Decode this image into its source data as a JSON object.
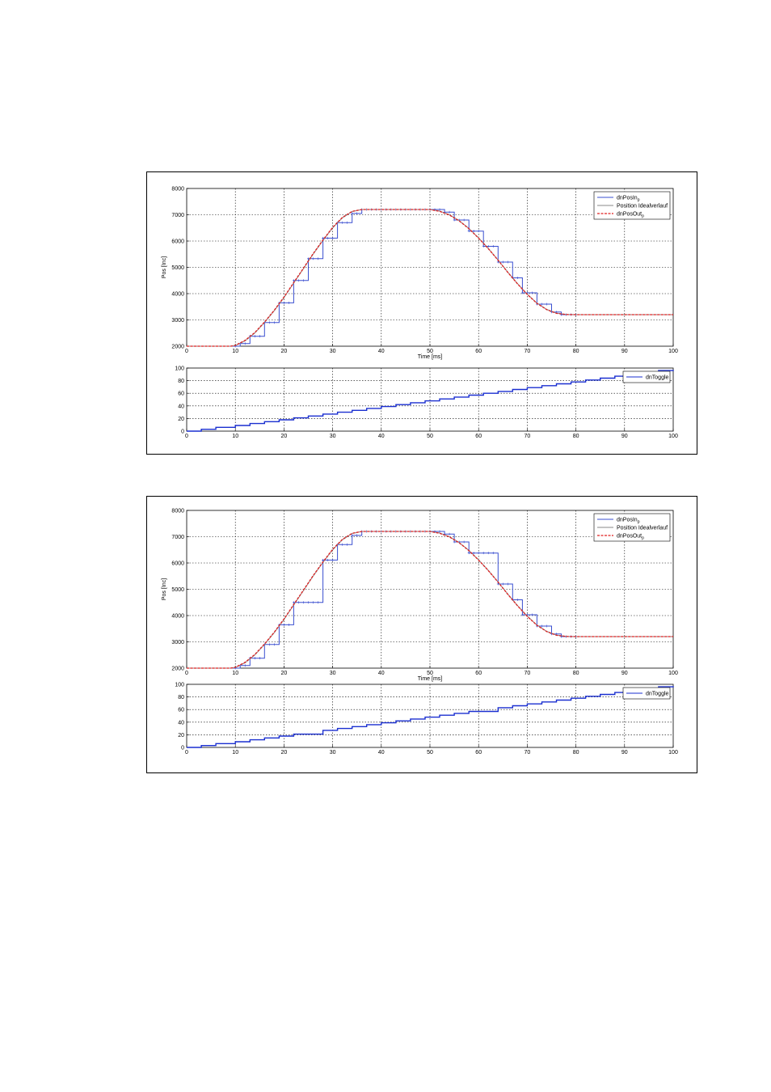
{
  "chart_data": [
    {
      "type": "line",
      "panel": "position",
      "xlabel": "Time [ms]",
      "ylabel": "Pos [Inc]",
      "xlim": [
        0,
        100
      ],
      "ylim": [
        2000,
        8000
      ],
      "xticks": [
        "0",
        "10",
        "20",
        "30",
        "40",
        "50",
        "60",
        "70",
        "80",
        "90",
        "100"
      ],
      "yticks": [
        "2000",
        "3000",
        "4000",
        "5000",
        "6000",
        "7000",
        "8000"
      ],
      "grid": true,
      "legend_position": "top-right",
      "series": [
        {
          "name": "dnPosIn",
          "name_sub": "p",
          "style": "step-markers",
          "color": "#3a4fd0",
          "x": [
            0,
            10,
            11,
            12,
            13,
            14,
            15,
            16,
            17,
            18,
            19,
            20,
            21,
            22,
            23,
            24,
            25,
            26,
            27,
            28,
            29,
            30,
            31,
            32,
            33,
            34,
            35,
            36,
            37,
            38,
            39,
            40,
            41,
            42,
            43,
            44,
            45,
            46,
            47,
            48,
            49,
            50,
            51,
            52,
            53,
            54,
            55,
            56,
            57,
            58,
            59,
            60,
            61,
            62,
            63,
            64,
            65,
            66,
            67,
            68,
            69,
            70,
            71,
            72,
            73,
            74,
            75,
            76,
            77,
            78,
            79,
            80,
            100
          ],
          "y": [
            2000,
            2000,
            2100,
            2100,
            2380,
            2380,
            2380,
            2900,
            2900,
            2900,
            3650,
            3650,
            3650,
            4500,
            4500,
            4500,
            5330,
            5330,
            5330,
            6110,
            6110,
            6110,
            6700,
            6700,
            6700,
            7050,
            7050,
            7200,
            7200,
            7200,
            7200,
            7200,
            7200,
            7200,
            7200,
            7200,
            7200,
            7200,
            7200,
            7200,
            7200,
            7200,
            7200,
            7200,
            7100,
            7100,
            6800,
            6800,
            6800,
            6380,
            6380,
            6380,
            5800,
            5800,
            5800,
            5200,
            5200,
            5200,
            4600,
            4600,
            4030,
            4030,
            4030,
            3600,
            3600,
            3600,
            3300,
            3300,
            3200,
            3200,
            3200,
            3200,
            3200
          ]
        },
        {
          "name": "Position Idealverlauf",
          "style": "line",
          "color": "#8a8a8a",
          "x": [
            0,
            9,
            10,
            12,
            14,
            16,
            18,
            20,
            22,
            24,
            26,
            28,
            30,
            32,
            34,
            36,
            38,
            50,
            52,
            54,
            56,
            58,
            60,
            62,
            64,
            66,
            68,
            70,
            72,
            74,
            76,
            78,
            80,
            100
          ],
          "y": [
            2000,
            2000,
            2020,
            2200,
            2500,
            2900,
            3350,
            3850,
            4400,
            4950,
            5500,
            6020,
            6500,
            6880,
            7120,
            7200,
            7200,
            7200,
            7140,
            7000,
            6780,
            6480,
            6120,
            5720,
            5280,
            4820,
            4380,
            3980,
            3640,
            3400,
            3260,
            3210,
            3200,
            3200
          ]
        },
        {
          "name": "dnPosOut",
          "name_sub": "p",
          "style": "dashed",
          "color": "#e02020",
          "x": [
            0,
            9,
            10,
            12,
            14,
            16,
            18,
            20,
            22,
            24,
            26,
            28,
            30,
            32,
            34,
            36,
            38,
            50,
            52,
            54,
            56,
            58,
            60,
            62,
            64,
            66,
            68,
            70,
            72,
            74,
            76,
            78,
            80,
            100
          ],
          "y": [
            2000,
            2000,
            2030,
            2220,
            2520,
            2920,
            3370,
            3870,
            4420,
            4970,
            5520,
            6040,
            6520,
            6900,
            7130,
            7200,
            7200,
            7200,
            7130,
            6990,
            6770,
            6470,
            6110,
            5710,
            5270,
            4810,
            4370,
            3970,
            3630,
            3390,
            3250,
            3205,
            3200,
            3200
          ]
        }
      ]
    },
    {
      "type": "line",
      "panel": "toggle",
      "xlim": [
        0,
        100
      ],
      "ylim": [
        0,
        100
      ],
      "xticks": [
        "0",
        "10",
        "20",
        "30",
        "40",
        "50",
        "60",
        "70",
        "80",
        "90",
        "100"
      ],
      "yticks": [
        "0",
        "20",
        "40",
        "60",
        "80",
        "100"
      ],
      "grid": true,
      "legend_position": "top-right",
      "series": [
        {
          "name": "dnToggle",
          "style": "step",
          "color": "#1a2fd0",
          "x": [
            0,
            3,
            6,
            10,
            13,
            16,
            19,
            22,
            25,
            28,
            31,
            34,
            37,
            40,
            43,
            46,
            49,
            52,
            55,
            58,
            61,
            64,
            67,
            70,
            73,
            76,
            79,
            82,
            85,
            88,
            91,
            94,
            97,
            100
          ],
          "y": [
            0,
            3,
            6,
            9,
            12,
            15,
            18,
            21,
            24,
            27,
            30,
            33,
            36,
            39,
            42,
            45,
            48,
            51,
            54,
            57,
            60,
            63,
            66,
            69,
            72,
            75,
            78,
            81,
            84,
            87,
            90,
            93,
            96,
            97
          ]
        }
      ]
    },
    {
      "type": "line",
      "panel": "position",
      "xlabel": "Time [ms]",
      "ylabel": "Pos [Inc]",
      "xlim": [
        0,
        100
      ],
      "ylim": [
        2000,
        8000
      ],
      "xticks": [
        "0",
        "10",
        "20",
        "30",
        "40",
        "50",
        "60",
        "70",
        "80",
        "90",
        "100"
      ],
      "yticks": [
        "2000",
        "3000",
        "4000",
        "5000",
        "6000",
        "7000",
        "8000"
      ],
      "grid": true,
      "legend_position": "top-right",
      "series": [
        {
          "name": "dnPosIn",
          "name_sub": "p",
          "style": "step-markers",
          "color": "#3a4fd0",
          "x": [
            0,
            10,
            11,
            12,
            13,
            14,
            15,
            16,
            17,
            18,
            19,
            20,
            21,
            22,
            23,
            24,
            25,
            26,
            27,
            28,
            29,
            30,
            31,
            32,
            33,
            34,
            35,
            36,
            37,
            38,
            39,
            40,
            41,
            42,
            43,
            44,
            45,
            46,
            47,
            48,
            49,
            50,
            51,
            52,
            53,
            54,
            55,
            56,
            57,
            58,
            59,
            60,
            61,
            62,
            63,
            64,
            65,
            66,
            67,
            68,
            69,
            70,
            71,
            72,
            73,
            74,
            75,
            76,
            77,
            78,
            79,
            80,
            100
          ],
          "y": [
            2000,
            2000,
            2100,
            2100,
            2380,
            2380,
            2380,
            2900,
            2900,
            2900,
            3650,
            3650,
            3650,
            4500,
            4500,
            4500,
            4500,
            4500,
            4500,
            6110,
            6110,
            6110,
            6700,
            6700,
            6700,
            7050,
            7050,
            7200,
            7200,
            7200,
            7200,
            7200,
            7200,
            7200,
            7200,
            7200,
            7200,
            7200,
            7200,
            7200,
            7200,
            7200,
            7200,
            7200,
            7100,
            7100,
            6800,
            6800,
            6800,
            6380,
            6380,
            6380,
            6380,
            6380,
            6380,
            5200,
            5200,
            5200,
            4600,
            4600,
            4030,
            4030,
            4030,
            3600,
            3600,
            3600,
            3300,
            3300,
            3200,
            3200,
            3200,
            3200,
            3200
          ]
        },
        {
          "name": "Position Idealverlauf",
          "style": "line",
          "color": "#8a8a8a",
          "x": [
            0,
            9,
            10,
            12,
            14,
            16,
            18,
            20,
            22,
            24,
            26,
            28,
            30,
            32,
            34,
            36,
            38,
            50,
            52,
            54,
            56,
            58,
            60,
            62,
            64,
            66,
            68,
            70,
            72,
            74,
            76,
            78,
            80,
            100
          ],
          "y": [
            2000,
            2000,
            2020,
            2200,
            2500,
            2900,
            3350,
            3850,
            4400,
            4950,
            5500,
            6020,
            6500,
            6880,
            7120,
            7200,
            7200,
            7200,
            7140,
            7000,
            6780,
            6480,
            6120,
            5720,
            5280,
            4820,
            4380,
            3980,
            3640,
            3400,
            3260,
            3210,
            3200,
            3200
          ]
        },
        {
          "name": "dnPosOut",
          "name_sub": "p",
          "style": "dashed",
          "color": "#e02020",
          "x": [
            0,
            9,
            10,
            12,
            14,
            16,
            18,
            20,
            22,
            24,
            26,
            28,
            30,
            32,
            34,
            36,
            38,
            50,
            52,
            54,
            56,
            58,
            60,
            62,
            64,
            66,
            68,
            70,
            72,
            74,
            76,
            78,
            80,
            100
          ],
          "y": [
            2000,
            2000,
            2030,
            2220,
            2520,
            2920,
            3370,
            3870,
            4420,
            4970,
            5520,
            6040,
            6520,
            6900,
            7130,
            7200,
            7200,
            7200,
            7130,
            6990,
            6770,
            6470,
            6110,
            5710,
            5270,
            4810,
            4370,
            3970,
            3630,
            3390,
            3250,
            3205,
            3200,
            3200
          ]
        }
      ]
    },
    {
      "type": "line",
      "panel": "toggle",
      "xlim": [
        0,
        100
      ],
      "ylim": [
        0,
        100
      ],
      "xticks": [
        "0",
        "10",
        "20",
        "30",
        "40",
        "50",
        "60",
        "70",
        "80",
        "90",
        "100"
      ],
      "yticks": [
        "0",
        "20",
        "40",
        "60",
        "80",
        "100"
      ],
      "grid": true,
      "legend_position": "top-right",
      "series": [
        {
          "name": "dnToggle",
          "style": "step",
          "color": "#1a2fd0",
          "x": [
            0,
            3,
            6,
            10,
            13,
            16,
            19,
            22,
            25,
            28,
            31,
            34,
            37,
            40,
            43,
            46,
            49,
            52,
            55,
            58,
            61,
            64,
            67,
            70,
            73,
            76,
            79,
            82,
            85,
            88,
            91,
            94,
            97,
            100
          ],
          "y": [
            0,
            3,
            6,
            9,
            12,
            15,
            18,
            21,
            21,
            27,
            30,
            33,
            36,
            39,
            42,
            45,
            48,
            51,
            54,
            57,
            57,
            63,
            66,
            69,
            72,
            75,
            78,
            81,
            84,
            87,
            90,
            93,
            96,
            97
          ]
        }
      ]
    }
  ]
}
